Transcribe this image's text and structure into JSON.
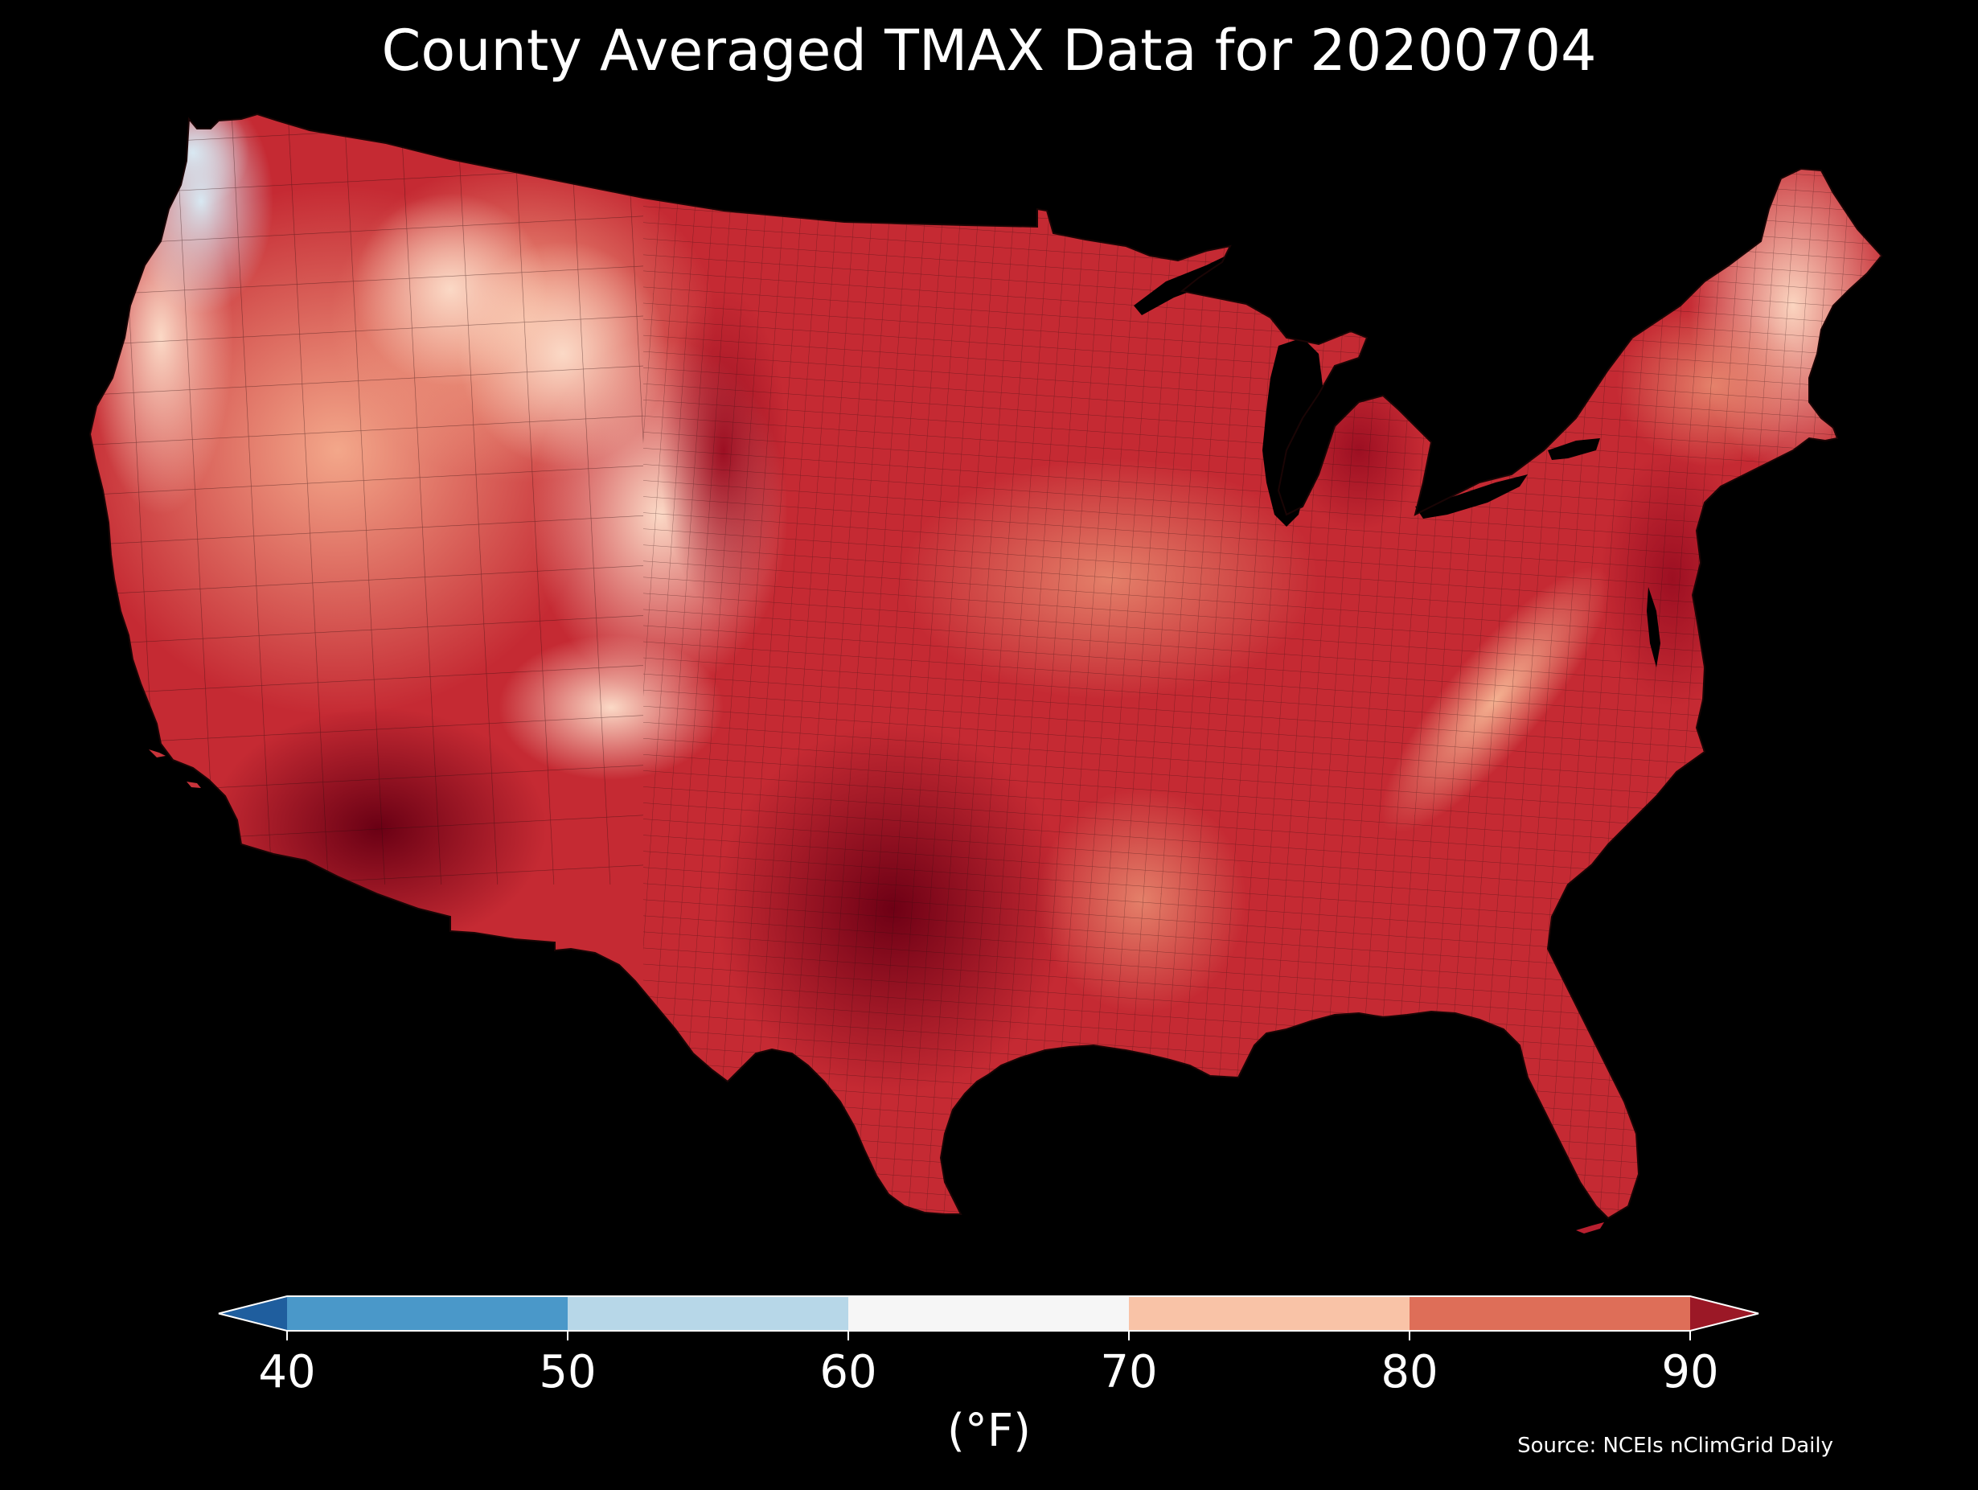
{
  "title": "County Averaged TMAX Data for 20200704",
  "source": "Source: NCEIs nClimGrid Daily",
  "colorbar": {
    "units_label": "(°F)",
    "ticks": [
      "40",
      "50",
      "60",
      "70",
      "80",
      "90"
    ],
    "tick_values": [
      40,
      50,
      60,
      70,
      80,
      90
    ],
    "bins": [
      {
        "from": 40,
        "to": 50,
        "color": "#4a98c9"
      },
      {
        "from": 50,
        "to": 60,
        "color": "#b7d7e8"
      },
      {
        "from": 60,
        "to": 70,
        "color": "#f6f6f6"
      },
      {
        "from": 70,
        "to": 80,
        "color": "#f9c3a7"
      },
      {
        "from": 80,
        "to": 90,
        "color": "#de6e58"
      }
    ],
    "under_color": "#1f5e9e",
    "over_color": "#9b1826",
    "extend": "both"
  },
  "map": {
    "region": "Contiguous United States",
    "variable": "TMAX",
    "background": "#000000",
    "county_border_color": "#2a0a0a"
  }
}
